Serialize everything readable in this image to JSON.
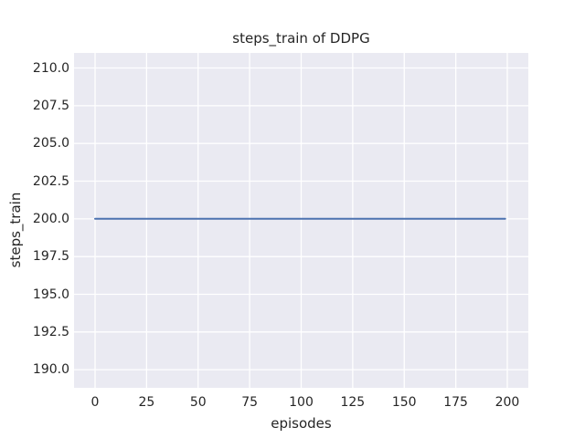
{
  "chart_data": {
    "type": "line",
    "title": "steps_train of DDPG",
    "xlabel": "episodes",
    "ylabel": "steps_train",
    "x_tick_values": [
      0,
      25,
      50,
      75,
      100,
      125,
      150,
      175,
      200
    ],
    "x_tick_labels": [
      "0",
      "25",
      "50",
      "75",
      "100",
      "125",
      "150",
      "175",
      "200"
    ],
    "y_tick_values": [
      210.0,
      207.5,
      205.0,
      202.5,
      200.0,
      197.5,
      195.0,
      192.5,
      190.0
    ],
    "y_tick_labels": [
      "210.0",
      "207.5",
      "205.0",
      "202.5",
      "200.0",
      "197.5",
      "195.0",
      "192.5",
      "190.0"
    ],
    "xlim": [
      -10.2,
      210.2
    ],
    "ylim": [
      188.8,
      211.0
    ],
    "grid": true,
    "legend": "none",
    "series": [
      {
        "name": "steps_train",
        "color": "#4C72B0",
        "description": "constant value 200 for every episode",
        "points": [
          [
            0,
            200
          ],
          [
            199,
            200
          ]
        ]
      }
    ],
    "colors": {
      "plot_background": "#EAEAF2",
      "grid_line": "#FFFFFF",
      "text": "#262626",
      "figure_background": "#FFFFFF"
    }
  }
}
